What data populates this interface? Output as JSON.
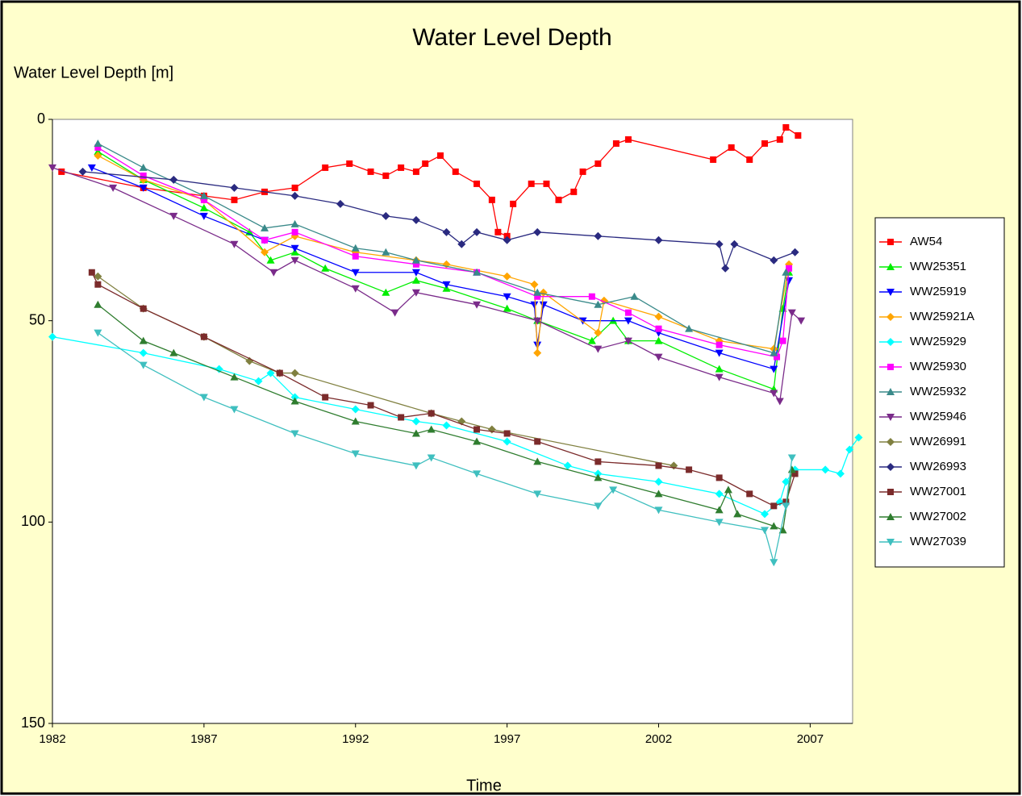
{
  "chart_data": {
    "type": "line",
    "title": "Water Level Depth",
    "y_label": "Water Level Depth [m]",
    "x_label": "Time",
    "xlim": [
      1982,
      2008.4
    ],
    "xticks": [
      1982,
      1987,
      1992,
      1997,
      2002,
      2007
    ],
    "ylim": [
      0,
      150
    ],
    "yticks": [
      0,
      50,
      100,
      150
    ],
    "y_inverted": true,
    "legend": "right",
    "series": [
      {
        "name": "AW54",
        "color": "#ff0000",
        "marker": "square",
        "x": [
          1982.3,
          1985,
          1987,
          1988,
          1989,
          1990,
          1991,
          1991.8,
          1992.5,
          1993,
          1993.5,
          1994,
          1994.3,
          1994.8,
          1995.3,
          1996,
          1996.5,
          1996.7,
          1997,
          1997.2,
          1997.8,
          1998.3,
          1998.7,
          1999.2,
          1999.5,
          2000,
          2000.6,
          2001,
          2003.8,
          2004.4,
          2005,
          2005.5,
          2006,
          2006.2,
          2006.6
        ],
        "values": [
          13,
          17,
          19,
          20,
          18,
          17,
          12,
          11,
          13,
          14,
          12,
          13,
          11,
          9,
          13,
          16,
          20,
          28,
          29,
          21,
          16,
          16,
          20,
          18,
          13,
          11,
          6,
          5,
          10,
          7,
          10,
          6,
          5,
          2,
          4
        ]
      },
      {
        "name": "WW25351",
        "color": "#00ee00",
        "marker": "triangle",
        "x": [
          1983.5,
          1985,
          1987,
          1988.5,
          1989.2,
          1990,
          1991,
          1993,
          1994,
          1995,
          1997,
          1998,
          1999.8,
          2000.5,
          2001,
          2002,
          2004,
          2005.8,
          2006.1,
          2006.3
        ],
        "values": [
          8,
          15,
          22,
          28,
          35,
          33,
          37,
          43,
          40,
          42,
          47,
          50,
          55,
          50,
          55,
          55,
          62,
          67,
          47,
          38
        ]
      },
      {
        "name": "WW25919",
        "color": "#0000ff",
        "marker": "triangle-down",
        "x": [
          1983.3,
          1985,
          1987,
          1989,
          1990,
          1992,
          1994,
          1995,
          1997,
          1997.9,
          1998,
          1998.2,
          1999.5,
          2001,
          2002,
          2004,
          2005.8,
          2006.3
        ],
        "values": [
          12,
          17,
          24,
          30,
          32,
          38,
          38,
          41,
          44,
          46,
          56,
          46,
          50,
          50,
          53,
          58,
          62,
          40
        ]
      },
      {
        "name": "WW25921A",
        "color": "#ffa500",
        "marker": "diamond",
        "x": [
          1983.5,
          1985,
          1987,
          1989,
          1990,
          1992,
          1994,
          1995,
          1997,
          1997.9,
          1998,
          1998.2,
          2000,
          2000.2,
          2002,
          2004,
          2005.8,
          2006.3
        ],
        "values": [
          9,
          15,
          20,
          33,
          29,
          33,
          35,
          36,
          39,
          41,
          58,
          43,
          53,
          45,
          49,
          55,
          57,
          36
        ]
      },
      {
        "name": "WW25929",
        "color": "#00ffff",
        "marker": "diamond",
        "x": [
          1982,
          1985,
          1987.5,
          1988.8,
          1989.2,
          1990,
          1992,
          1994,
          1995,
          1997,
          1999,
          2000,
          2002,
          2004,
          2005.5,
          2006,
          2006.2,
          2006.5,
          2007.5,
          2008,
          2008.3,
          2008.6
        ],
        "values": [
          54,
          58,
          62,
          65,
          63,
          69,
          72,
          75,
          76,
          80,
          86,
          88,
          90,
          93,
          98,
          95,
          90,
          87,
          87,
          88,
          82,
          79
        ]
      },
      {
        "name": "WW25930",
        "color": "#ff00ff",
        "marker": "square",
        "x": [
          1983.5,
          1985,
          1987,
          1989,
          1990,
          1992,
          1994,
          1996,
          1998,
          1999.8,
          2001,
          2002,
          2004,
          2005.9,
          2006.1,
          2006.3
        ],
        "values": [
          7,
          14,
          20,
          30,
          28,
          34,
          36,
          38,
          44,
          44,
          48,
          52,
          56,
          59,
          55,
          37
        ]
      },
      {
        "name": "WW25932",
        "color": "#3a8a8a",
        "marker": "triangle",
        "x": [
          1983.5,
          1985,
          1987,
          1989,
          1990,
          1992,
          1993,
          1994,
          1996,
          1998,
          2000,
          2001.2,
          2003,
          2005.8,
          2006.2
        ],
        "values": [
          6,
          12,
          19,
          27,
          26,
          32,
          33,
          35,
          38,
          43,
          46,
          44,
          52,
          58,
          38
        ]
      },
      {
        "name": "WW25946",
        "color": "#7a2b8a",
        "marker": "triangle-down",
        "x": [
          1982,
          1984,
          1986,
          1988,
          1989.3,
          1990,
          1992,
          1993.3,
          1994,
          1996,
          1998,
          2000,
          2001,
          2002,
          2004,
          2005.8,
          2006,
          2006.4,
          2006.7
        ],
        "values": [
          12,
          17,
          24,
          31,
          38,
          35,
          42,
          48,
          43,
          46,
          50,
          57,
          55,
          59,
          64,
          68,
          70,
          48,
          50
        ]
      },
      {
        "name": "WW26991",
        "color": "#808040",
        "marker": "diamond",
        "x": [
          1983.5,
          1985,
          1987,
          1988.5,
          1989.5,
          1990,
          1994.5,
          1995.5,
          1996.5,
          2002.5
        ],
        "values": [
          39,
          47,
          54,
          60,
          63,
          63,
          73,
          75,
          77,
          86
        ]
      },
      {
        "name": "WW26993",
        "color": "#2a2a80",
        "marker": "diamond",
        "x": [
          1983,
          1986,
          1988,
          1990,
          1991.5,
          1993,
          1994,
          1995,
          1995.5,
          1996,
          1997,
          1998,
          2000,
          2002,
          2004,
          2004.2,
          2004.5,
          2005.8,
          2006.5
        ],
        "values": [
          13,
          15,
          17,
          19,
          21,
          24,
          25,
          28,
          31,
          28,
          30,
          28,
          29,
          30,
          31,
          37,
          31,
          35,
          33
        ]
      },
      {
        "name": "WW27001",
        "color": "#7b2b2b",
        "marker": "square",
        "x": [
          1983.3,
          1983.5,
          1985,
          1987,
          1989.5,
          1991,
          1992.5,
          1993.5,
          1994.5,
          1996,
          1997,
          1998,
          2000,
          2002,
          2003,
          2004,
          2005,
          2005.8,
          2006.2,
          2006.5
        ],
        "values": [
          38,
          41,
          47,
          54,
          63,
          69,
          71,
          74,
          73,
          77,
          78,
          80,
          85,
          86,
          87,
          89,
          93,
          96,
          95,
          88
        ]
      },
      {
        "name": "WW27002",
        "color": "#2f7d2f",
        "marker": "triangle",
        "x": [
          1983.5,
          1985,
          1986,
          1988,
          1990,
          1992,
          1994,
          1994.5,
          1996,
          1998,
          2000,
          2002,
          2004,
          2004.3,
          2004.6,
          2005.8,
          2006.1,
          2006.4
        ],
        "values": [
          46,
          55,
          58,
          64,
          70,
          75,
          78,
          77,
          80,
          85,
          89,
          93,
          97,
          92,
          98,
          101,
          102,
          87
        ]
      },
      {
        "name": "WW27039",
        "color": "#3fbfbf",
        "marker": "triangle-down",
        "x": [
          1983.5,
          1985,
          1987,
          1988,
          1990,
          1992,
          1994,
          1994.5,
          1996,
          1998,
          2000,
          2000.5,
          2002,
          2004,
          2005.5,
          2005.8,
          2006.2,
          2006.4
        ],
        "values": [
          53,
          61,
          69,
          72,
          78,
          83,
          86,
          84,
          88,
          93,
          96,
          92,
          97,
          100,
          102,
          110,
          96,
          84
        ]
      }
    ]
  }
}
